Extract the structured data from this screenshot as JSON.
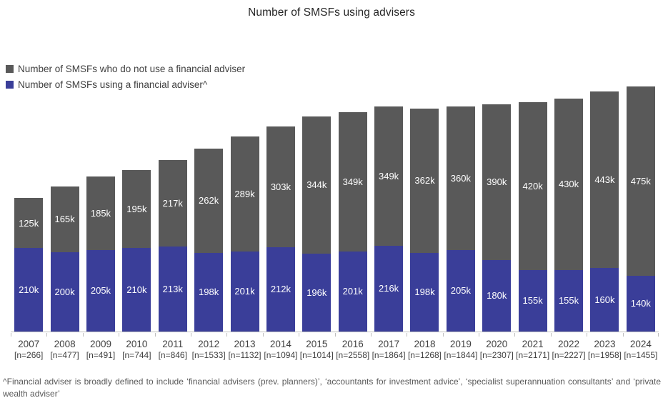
{
  "chart": {
    "title": "Number of SMSFs using advisers",
    "legend": [
      {
        "id": "no-adviser",
        "label": "Number of SMSFs who do not use a financial adviser",
        "color": "#595959"
      },
      {
        "id": "adviser",
        "label": "Number of SMSFs using a financial adviser^",
        "color": "#3a3e99"
      }
    ],
    "footnote": "^Financial adviser is broadly defined to include ‘financial advisers (prev. planners)’, ‘accountants for investment advice’, ‘specialist superannuation consultants’ and ‘private wealth adviser’"
  },
  "chart_data": {
    "type": "bar",
    "stacked": true,
    "title": "Number of SMSFs using advisers",
    "xlabel": "",
    "ylabel": "",
    "unit": "thousands of SMSFs",
    "value_suffix": "k",
    "grid": false,
    "y_axis_visible": false,
    "legend_position": "top-left",
    "ylim_k": [
      0,
      615
    ],
    "categories": [
      "2007",
      "2008",
      "2009",
      "2010",
      "2011",
      "2012",
      "2013",
      "2014",
      "2015",
      "2016",
      "2017",
      "2018",
      "2019",
      "2020",
      "2021",
      "2022",
      "2023",
      "2024"
    ],
    "sample_sizes": [
      "[n=266]",
      "[n=477]",
      "[n=491]",
      "[n=744]",
      "[n=846]",
      "[n=1533]",
      "[n=1132]",
      "[n=1094]",
      "[n=1014]",
      "[n=2558]",
      "[n=1864]",
      "[n=1268]",
      "[n=1844]",
      "[n=2307]",
      "[n=2171]",
      "[n=2227]",
      "[n=1958]",
      "[n=1455]"
    ],
    "series": [
      {
        "name": "Number of SMSFs who do not use a financial adviser",
        "color": "#595959",
        "stack_order": "top",
        "values_k": [
          125,
          165,
          185,
          195,
          217,
          262,
          289,
          303,
          344,
          349,
          349,
          362,
          360,
          390,
          420,
          430,
          443,
          475
        ]
      },
      {
        "name": "Number of SMSFs using a financial adviser^",
        "color": "#3a3e99",
        "stack_order": "bottom",
        "values_k": [
          210,
          200,
          205,
          210,
          213,
          198,
          201,
          212,
          196,
          201,
          216,
          198,
          205,
          180,
          155,
          155,
          160,
          140
        ]
      }
    ]
  }
}
